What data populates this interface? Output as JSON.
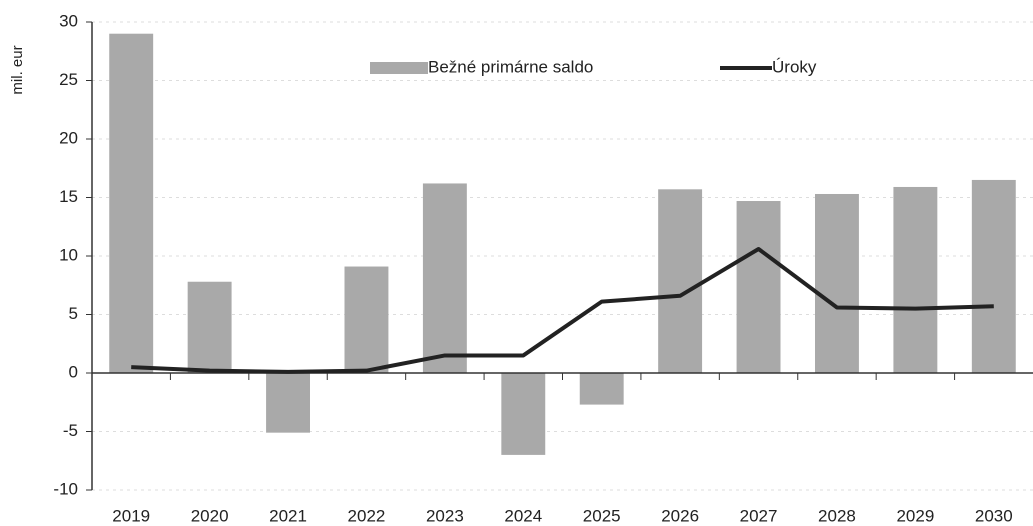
{
  "chart_data": {
    "type": "bar",
    "y_label": "mil. eur",
    "categories": [
      "2019",
      "2020",
      "2021",
      "2022",
      "2023",
      "2024",
      "2025",
      "2026",
      "2027",
      "2028",
      "2029",
      "2030"
    ],
    "series": [
      {
        "name": "Bežné primárne saldo",
        "type": "bar",
        "color": "#a9a9a9",
        "values": [
          29,
          7.8,
          -5.1,
          9.1,
          16.2,
          -7,
          -2.7,
          15.7,
          14.7,
          15.3,
          15.9,
          16.5
        ]
      },
      {
        "name": "Úroky",
        "type": "line",
        "color": "#222222",
        "values": [
          0.5,
          0.2,
          0.1,
          0.2,
          1.5,
          1.5,
          6.1,
          6.6,
          10.6,
          5.6,
          5.5,
          5.7
        ]
      }
    ],
    "ylim": [
      -10,
      30
    ],
    "yticks": [
      -10,
      -5,
      0,
      5,
      10,
      15,
      20,
      25,
      30
    ],
    "grid": true,
    "legend": "top"
  }
}
